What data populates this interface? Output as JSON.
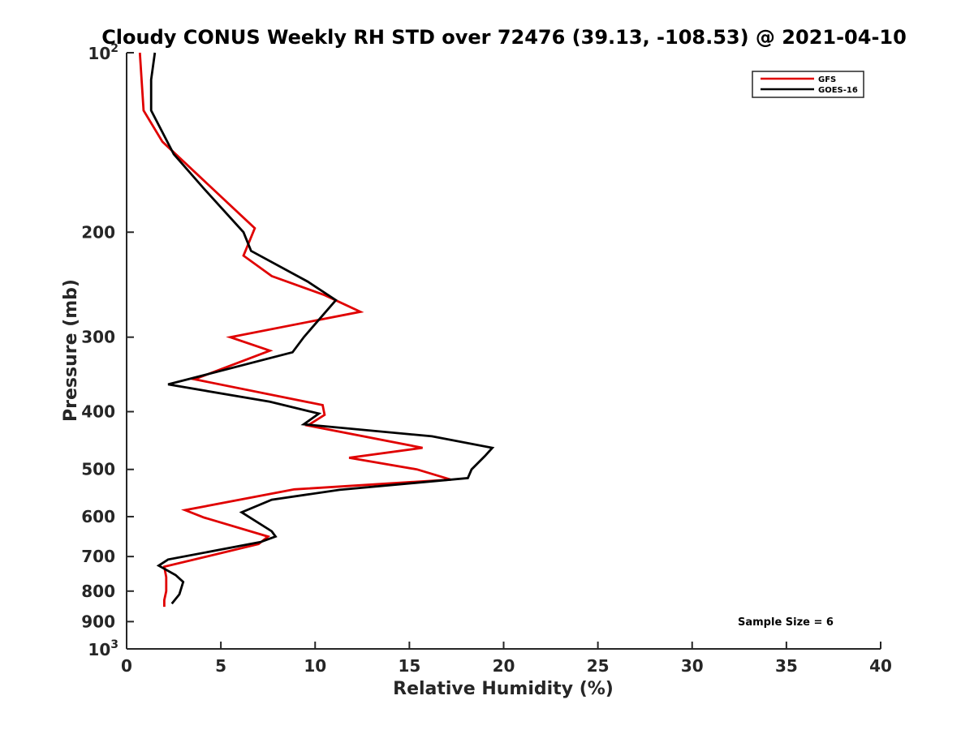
{
  "chart_data": {
    "type": "line",
    "title": "Cloudy CONUS Weekly RH STD over 72476 (39.13, -108.53) @ 2021-04-10",
    "xlabel": "Relative Humidity (%)",
    "ylabel": "Pressure (mb)",
    "xlim": [
      0,
      40
    ],
    "ylim": [
      100,
      1000
    ],
    "yscale": "log",
    "y_reversed": true,
    "x_ticks": [
      "0",
      "5",
      "10",
      "15",
      "20",
      "25",
      "30",
      "35",
      "40"
    ],
    "y_ticks": [
      {
        "value": 100,
        "base": "10",
        "exp": "2"
      },
      {
        "value": 200,
        "label": "200"
      },
      {
        "value": 300,
        "label": "300"
      },
      {
        "value": 400,
        "label": "400"
      },
      {
        "value": 500,
        "label": "500"
      },
      {
        "value": 600,
        "label": "600"
      },
      {
        "value": 700,
        "label": "700"
      },
      {
        "value": 800,
        "label": "800"
      },
      {
        "value": 900,
        "label": "900"
      },
      {
        "value": 1000,
        "base": "10",
        "exp": "3"
      }
    ],
    "legend_position": "top-right",
    "grid": false,
    "annotation": "Sample Size = 6",
    "series": [
      {
        "name": "GFS",
        "color": "#e00000",
        "points": [
          [
            0.7,
            100
          ],
          [
            0.9,
            125
          ],
          [
            1.9,
            141
          ],
          [
            6.8,
            197
          ],
          [
            6.2,
            219
          ],
          [
            7.7,
            237
          ],
          [
            10.5,
            255
          ],
          [
            12.4,
            272
          ],
          [
            5.5,
            300
          ],
          [
            7.6,
            316
          ],
          [
            3.6,
            353
          ],
          [
            10.4,
            390
          ],
          [
            10.5,
            405
          ],
          [
            9.6,
            422
          ],
          [
            15.7,
            460
          ],
          [
            11.8,
            478
          ],
          [
            15.4,
            500
          ],
          [
            17.2,
            520
          ],
          [
            8.9,
            540
          ],
          [
            3.1,
            585
          ],
          [
            4.1,
            602
          ],
          [
            7.5,
            648
          ],
          [
            7.0,
            667
          ],
          [
            2.0,
            728
          ],
          [
            2.1,
            758
          ],
          [
            2.1,
            780
          ],
          [
            2.1,
            800
          ],
          [
            2.0,
            828
          ],
          [
            2.0,
            850
          ]
        ]
      },
      {
        "name": "GOES-16",
        "color": "#000000",
        "points": [
          [
            1.5,
            100
          ],
          [
            1.3,
            111
          ],
          [
            1.3,
            125
          ],
          [
            2.5,
            148
          ],
          [
            4.1,
            169
          ],
          [
            6.2,
            200
          ],
          [
            6.6,
            215
          ],
          [
            9.6,
            242
          ],
          [
            11.1,
            260
          ],
          [
            9.4,
            300
          ],
          [
            8.8,
            318
          ],
          [
            2.2,
            360
          ],
          [
            7.6,
            385
          ],
          [
            10.2,
            403
          ],
          [
            9.4,
            420
          ],
          [
            16.2,
            440
          ],
          [
            19.4,
            460
          ],
          [
            19.0,
            475
          ],
          [
            18.3,
            500
          ],
          [
            18.1,
            517
          ],
          [
            11.3,
            541
          ],
          [
            7.7,
            562
          ],
          [
            6.1,
            590
          ],
          [
            7.7,
            635
          ],
          [
            7.9,
            648
          ],
          [
            7.1,
            662
          ],
          [
            2.2,
            708
          ],
          [
            1.7,
            725
          ],
          [
            2.6,
            752
          ],
          [
            3.0,
            772
          ],
          [
            2.8,
            810
          ],
          [
            2.4,
            840
          ]
        ]
      }
    ]
  }
}
